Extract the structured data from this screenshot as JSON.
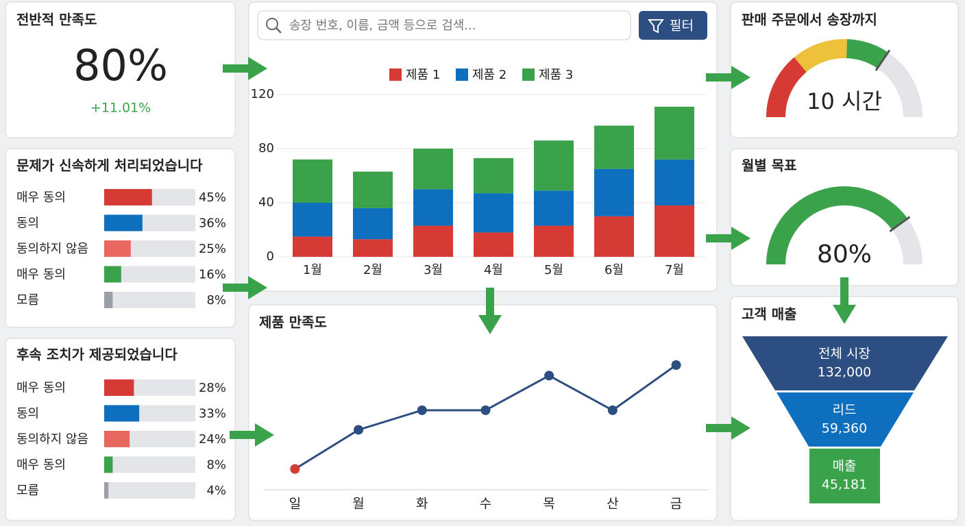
{
  "search": {
    "placeholder": "송장 번호, 이름, 금액 등으로 검색...",
    "filter_button": "필터"
  },
  "overall": {
    "title": "전반적 만족도",
    "value": 80,
    "value_label": "80%",
    "change": "+11.01%"
  },
  "resolved": {
    "title": "문제가 신속하게 처리되었습니다",
    "items": [
      {
        "label": "매우 동의",
        "value": 45,
        "value_label": "45%",
        "color": "#d63a35"
      },
      {
        "label": "동의",
        "value": 36,
        "value_label": "36%",
        "color": "#0f6fbf"
      },
      {
        "label": "동의하지 않음",
        "value": 25,
        "value_label": "25%",
        "color": "#e8675f"
      },
      {
        "label": "매우 동의",
        "value": 16,
        "value_label": "16%",
        "color": "#3aa24a"
      },
      {
        "label": "모름",
        "value": 8,
        "value_label": "8%",
        "color": "#9aa0a6"
      }
    ]
  },
  "followup": {
    "title": "후속 조치가 제공되었습니다",
    "items": [
      {
        "label": "매우 동의",
        "value": 28,
        "value_label": "28%",
        "color": "#d63a35"
      },
      {
        "label": "동의",
        "value": 33,
        "value_label": "33%",
        "color": "#0f6fbf"
      },
      {
        "label": "동의하지 않음",
        "value": 24,
        "value_label": "24%",
        "color": "#e8675f"
      },
      {
        "label": "매우 동의",
        "value": 8,
        "value_label": "8%",
        "color": "#3aa24a"
      },
      {
        "label": "모름",
        "value": 4,
        "value_label": "4%",
        "color": "#9aa0a6"
      }
    ]
  },
  "chart_data": [
    {
      "type": "bar",
      "stacked": true,
      "grid": true,
      "legend": "top",
      "categories": [
        "1월",
        "2월",
        "3월",
        "4월",
        "5월",
        "6월",
        "7월"
      ],
      "series": [
        {
          "name": "제품 1",
          "color": "#d63a35",
          "values": [
            15,
            13,
            23,
            18,
            23,
            30,
            38
          ]
        },
        {
          "name": "제품 2",
          "color": "#0f6fbf",
          "values": [
            25,
            23,
            27,
            29,
            26,
            35,
            34
          ]
        },
        {
          "name": "제품 3",
          "color": "#3aa24a",
          "values": [
            32,
            27,
            30,
            26,
            37,
            32,
            39
          ]
        }
      ],
      "ylim": [
        0,
        120
      ],
      "yticks": [
        0,
        40,
        80,
        120
      ]
    },
    {
      "type": "line",
      "title": "제품 만족도",
      "categories": [
        "일",
        "월",
        "화",
        "수",
        "목",
        "산",
        "금"
      ],
      "values": [
        16,
        42,
        55,
        55,
        78,
        55,
        85
      ],
      "color": "#2d4e80",
      "point_colors": [
        "#d63a35",
        "#2d4e80",
        "#2d4e80",
        "#2d4e80",
        "#2d4e80",
        "#2d4e80",
        "#2d4e80"
      ],
      "ylim": [
        0,
        100
      ]
    }
  ],
  "order_to_invoice": {
    "title": "판매 주문에서 송장까지",
    "label": "10 시간"
  },
  "monthly_goal": {
    "title": "월별 목표",
    "value": 80,
    "value_label": "80%",
    "color": "#3aa24a"
  },
  "funnel": {
    "title": "고객 매출",
    "stages": [
      {
        "name": "전체 시장",
        "value": 132000,
        "value_label": "132,000",
        "color": "#2d4e80"
      },
      {
        "name": "리드",
        "value": 59360,
        "value_label": "59,360",
        "color": "#0f6fbf"
      },
      {
        "name": "매출",
        "value": 45181,
        "value_label": "45,181",
        "color": "#3aa24a"
      }
    ]
  }
}
